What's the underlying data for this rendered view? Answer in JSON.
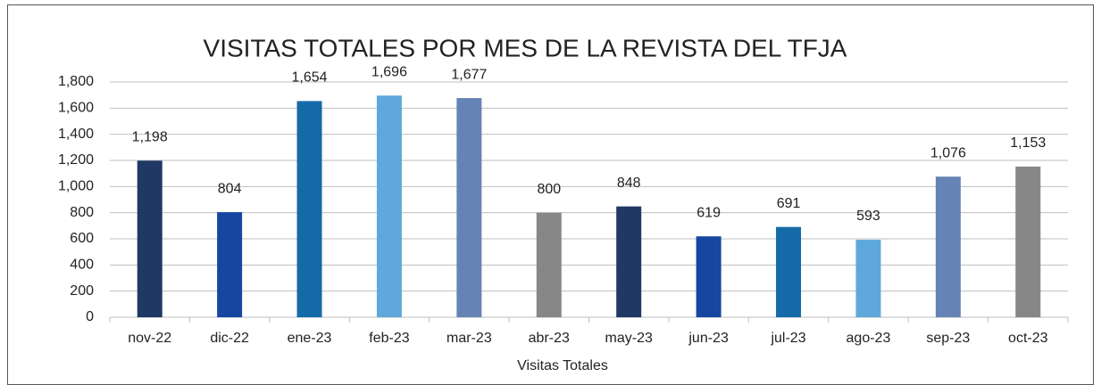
{
  "chart_data": {
    "type": "bar",
    "title": "VISITAS TOTALES POR MES DE LA REVISTA DEL TFJA",
    "x_label": "Visitas Totales",
    "categories": [
      "nov-22",
      "dic-22",
      "ene-23",
      "feb-23",
      "mar-23",
      "abr-23",
      "may-23",
      "jun-23",
      "jul-23",
      "ago-23",
      "sep-23",
      "oct-23"
    ],
    "values": [
      1198,
      804,
      1654,
      1696,
      1677,
      800,
      848,
      619,
      691,
      593,
      1076,
      1153
    ],
    "value_labels": [
      "1,198",
      "804",
      "1,654",
      "1,696",
      "1,677",
      "800",
      "848",
      "619",
      "691",
      "593",
      "1,076",
      "1,153"
    ],
    "colors": [
      "#203864",
      "#1746a0",
      "#156aa8",
      "#5fa8dc",
      "#6683b5",
      "#878787",
      "#203864",
      "#1746a0",
      "#156aa8",
      "#5fa8dc",
      "#6683b5",
      "#878787"
    ],
    "ylim": [
      0,
      1800
    ],
    "yticks": [
      0,
      200,
      400,
      600,
      800,
      {
        "value": 1000,
        "label": "1,000"
      },
      {
        "value": 1200,
        "label": "1,200"
      },
      {
        "value": 1400,
        "label": "1,400"
      },
      {
        "value": 1600,
        "label": "1,600"
      },
      {
        "value": 1800,
        "label": "1,800"
      }
    ],
    "grid": true
  }
}
